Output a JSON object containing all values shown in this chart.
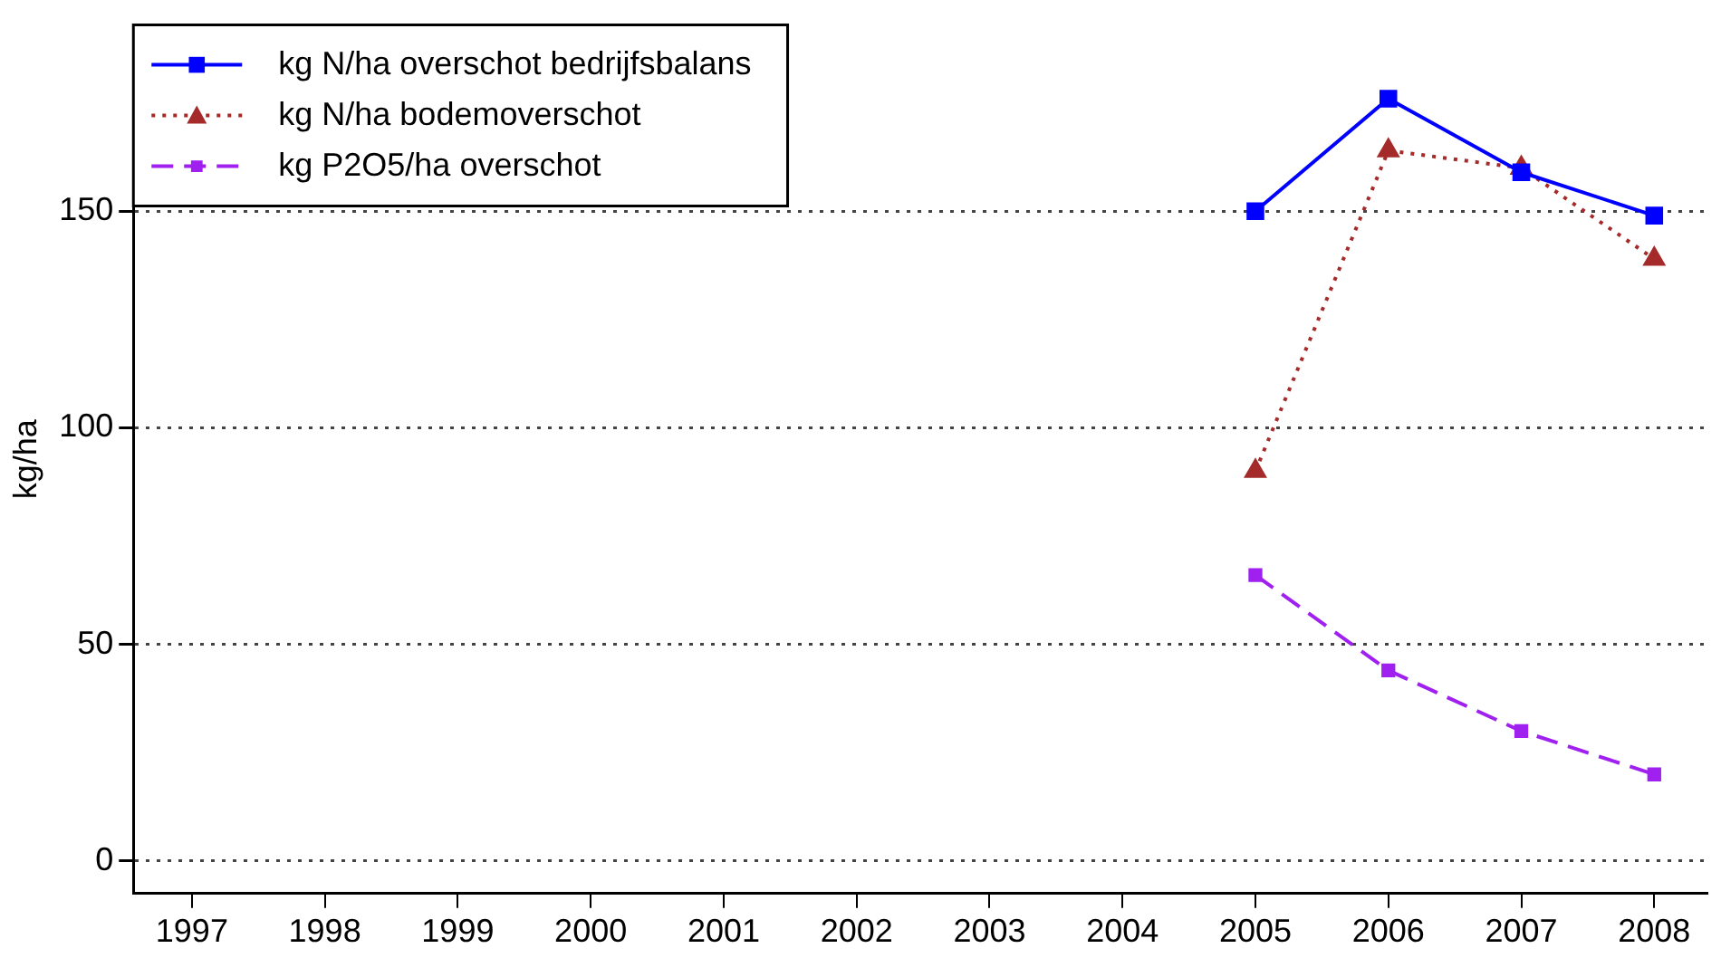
{
  "chart_data": {
    "type": "line",
    "ylabel": "kg/ha",
    "x": [
      2005,
      2006,
      2007,
      2008
    ],
    "series": [
      {
        "name": "kg N/ha overschot bedrijfsbalans",
        "color": "#0000ff",
        "values": [
          150,
          176,
          159,
          149
        ],
        "marker": "square",
        "line_style": "solid"
      },
      {
        "name": "kg N/ha bodemoverschot",
        "color": "#a52a2a",
        "values": [
          90,
          164,
          160,
          139
        ],
        "marker": "triangle",
        "line_style": "dotted"
      },
      {
        "name": "kg P2O5/ha overschot",
        "color": "#a020f0",
        "values": [
          66,
          44,
          30,
          20
        ],
        "marker": "square",
        "line_style": "dashed"
      }
    ],
    "xlim": [
      1996.56,
      2008.4
    ],
    "xticks": [
      1997,
      1998,
      1999,
      2000,
      2001,
      2002,
      2003,
      2004,
      2005,
      2006,
      2007,
      2008
    ],
    "ylim": [
      -7.5,
      193
    ],
    "yticks": [
      0,
      50,
      100,
      150
    ],
    "grid": "y",
    "legend": "top left"
  }
}
